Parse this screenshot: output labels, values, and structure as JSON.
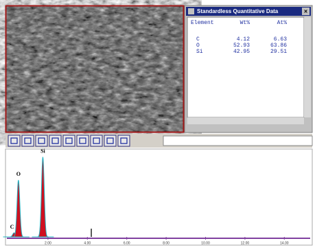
{
  "window": {
    "title": "Standardless Quantitative Data"
  },
  "table": {
    "header": [
      "Element",
      "Wt%",
      "At%"
    ],
    "rows": [
      [
        "C",
        4.12,
        6.63
      ],
      [
        "O",
        52.93,
        63.86
      ],
      [
        "Si",
        42.95,
        29.51
      ]
    ]
  },
  "spectrum": {
    "xlim": [
      0,
      15
    ],
    "ylim": [
      0,
      100
    ],
    "xticks": [
      {
        "value": 2,
        "label": "2.00"
      },
      {
        "value": 4,
        "label": "4.00"
      },
      {
        "value": 6,
        "label": "6.00"
      },
      {
        "value": 8,
        "label": "8.00"
      },
      {
        "value": 10,
        "label": "10.00"
      },
      {
        "value": 12,
        "label": "12.00"
      },
      {
        "value": 14,
        "label": "14.00"
      }
    ],
    "peaks": [
      {
        "label": "C",
        "x": 0.28,
        "height": 5
      },
      {
        "label": "O",
        "x": 0.5,
        "height": 69
      },
      {
        "label": "Si",
        "x": 1.74,
        "height": 97
      }
    ],
    "cursor": 4.2
  }
}
